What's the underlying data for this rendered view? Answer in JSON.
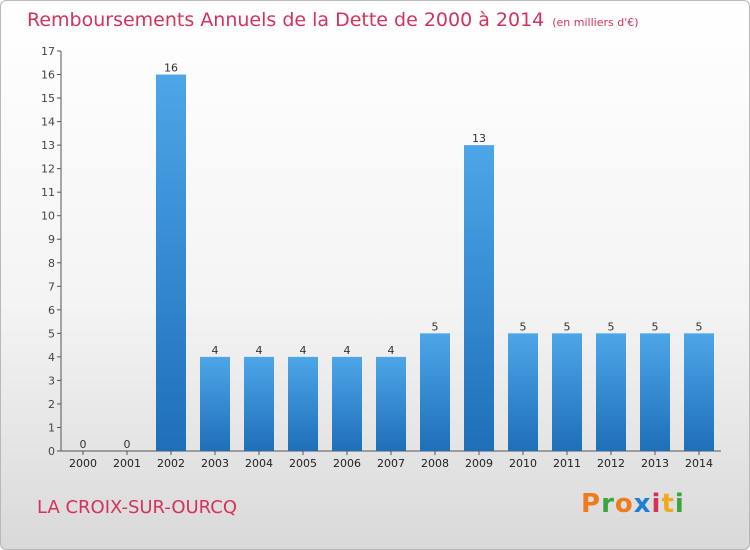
{
  "chart_data": {
    "type": "bar",
    "title": "Remboursements Annuels de la Dette de 2000 à 2014",
    "unit_note": "(en milliers d'€)",
    "categories": [
      "2000",
      "2001",
      "2002",
      "2003",
      "2004",
      "2005",
      "2006",
      "2007",
      "2008",
      "2009",
      "2010",
      "2011",
      "2012",
      "2013",
      "2014"
    ],
    "values": [
      0,
      0,
      16,
      4,
      4,
      4,
      4,
      4,
      5,
      13,
      5,
      5,
      5,
      5,
      5
    ],
    "ylim": [
      0,
      17
    ],
    "yticks": [
      0,
      1,
      2,
      3,
      4,
      5,
      6,
      7,
      8,
      9,
      10,
      11,
      12,
      13,
      14,
      15,
      16,
      17
    ],
    "grid": false,
    "bar_color": "#4da6e8",
    "bar_color_dark": "#1e6fb8"
  },
  "footer": {
    "commune": "LA CROIX-SUR-OURCQ",
    "logo_text": "Proxiti",
    "logo_colors": [
      "#f07b1e",
      "#3ba53b",
      "#f07b1e",
      "#1e7fd4",
      "#d4325a",
      "#f0a81e",
      "#3ba53b"
    ]
  },
  "colors": {
    "accent": "#d4325a",
    "axis": "#333333"
  }
}
